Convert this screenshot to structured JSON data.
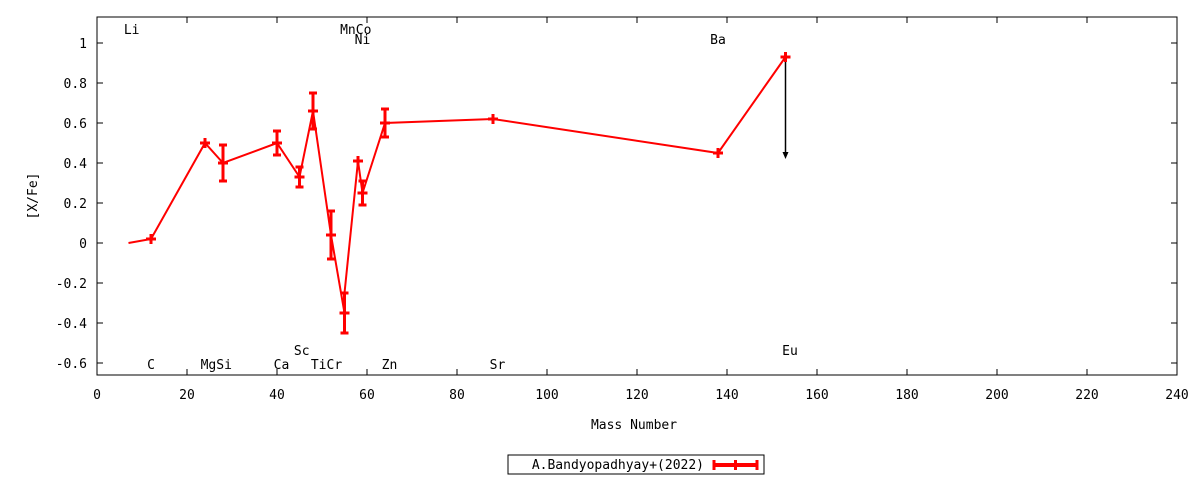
{
  "chart_data": {
    "type": "line",
    "xlabel": "Mass Number",
    "ylabel": "[X/Fe]",
    "xlim": [
      0,
      240
    ],
    "ylim": [
      -0.66,
      1.13
    ],
    "xticks": [
      0,
      20,
      40,
      60,
      80,
      100,
      120,
      140,
      160,
      180,
      200,
      220,
      240
    ],
    "yticks": [
      -0.6,
      -0.4,
      -0.2,
      0,
      0.2,
      0.4,
      0.6,
      0.8,
      1
    ],
    "ytick_labels": [
      "-0.6",
      "-0.4",
      "-0.2",
      "0",
      "0.2",
      "0.4",
      "0.6",
      "0.8",
      "1"
    ],
    "grid": false,
    "legend_position": "bottom-center",
    "series": [
      {
        "name": "A.Bandyopadhyay+(2022)",
        "color": "#ff0000",
        "points": [
          {
            "x": 7,
            "y": 0.0,
            "err": 0,
            "marker": false
          },
          {
            "x": 12,
            "y": 0.02,
            "err": 0.01
          },
          {
            "x": 24,
            "y": 0.5,
            "err": 0.01
          },
          {
            "x": 28,
            "y": 0.4,
            "err": 0.09
          },
          {
            "x": 40,
            "y": 0.5,
            "err": 0.06
          },
          {
            "x": 45,
            "y": 0.33,
            "err": 0.05
          },
          {
            "x": 48,
            "y": 0.66,
            "err": 0.09
          },
          {
            "x": 52,
            "y": 0.04,
            "err": 0.12
          },
          {
            "x": 55,
            "y": -0.35,
            "err": 0.1
          },
          {
            "x": 55,
            "y": -0.25,
            "err": 0,
            "marker": false
          },
          {
            "x": 58,
            "y": 0.41,
            "err": 0.01
          },
          {
            "x": 59,
            "y": 0.25,
            "err": 0.06
          },
          {
            "x": 64,
            "y": 0.6,
            "err": 0.07
          },
          {
            "x": 88,
            "y": 0.62,
            "err": 0.01
          },
          {
            "x": 138,
            "y": 0.45,
            "err": 0.01
          },
          {
            "x": 153,
            "y": 0.93,
            "err": 0.01,
            "upper_limit": true,
            "limit_to": 0.42
          }
        ]
      }
    ],
    "annotations": [
      {
        "text": "Li",
        "x": 7.7,
        "y": 1.07
      },
      {
        "text": "MnCo",
        "x": 57.5,
        "y": 1.07
      },
      {
        "text": "Ni",
        "x": 59,
        "y": 1.02
      },
      {
        "text": "Ba",
        "x": 138,
        "y": 1.02
      },
      {
        "text": "Sc",
        "x": 45.5,
        "y": -0.535
      },
      {
        "text": "Eu",
        "x": 154,
        "y": -0.535
      },
      {
        "text": "C",
        "x": 12,
        "y": -0.605
      },
      {
        "text": "MgSi",
        "x": 26.5,
        "y": -0.605
      },
      {
        "text": "Ca",
        "x": 41,
        "y": -0.605
      },
      {
        "text": "TiCr",
        "x": 51,
        "y": -0.605
      },
      {
        "text": "Zn",
        "x": 65,
        "y": -0.605
      },
      {
        "text": "Sr",
        "x": 89,
        "y": -0.605
      }
    ]
  }
}
